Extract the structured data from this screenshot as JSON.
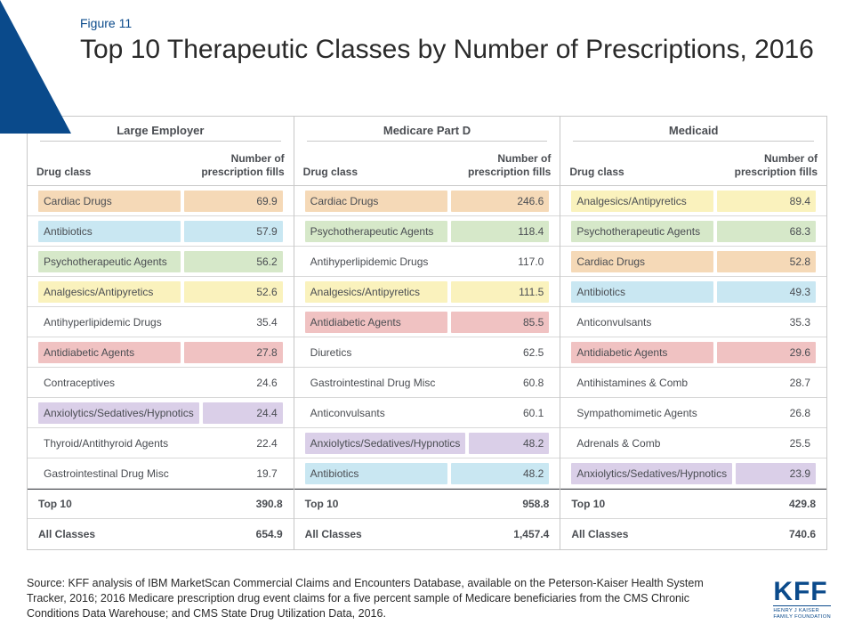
{
  "figure_label": "Figure 11",
  "title": "Top 10 Therapeutic Classes by Number of Prescriptions, 2016",
  "colors": {
    "cardiac": "#f5d9b7",
    "antibiotics": "#c9e7f2",
    "psycho": "#d6e8c9",
    "analgesics": "#faf2bd",
    "antidiabetic": "#f0c2c2",
    "anxiolytics": "#dacfe8",
    "none": "transparent"
  },
  "column_labels": {
    "drug": "Drug class",
    "num": "Number of prescription fills"
  },
  "panels": [
    {
      "name": "Large Employer",
      "rows": [
        {
          "drug": "Cardiac Drugs",
          "val": "69.9",
          "c": "cardiac"
        },
        {
          "drug": "Antibiotics",
          "val": "57.9",
          "c": "antibiotics"
        },
        {
          "drug": "Psychotherapeutic Agents",
          "val": "56.2",
          "c": "psycho"
        },
        {
          "drug": "Analgesics/Antipyretics",
          "val": "52.6",
          "c": "analgesics"
        },
        {
          "drug": "Antihyperlipidemic Drugs",
          "val": "35.4",
          "c": "none"
        },
        {
          "drug": "Antidiabetic Agents",
          "val": "27.8",
          "c": "antidiabetic"
        },
        {
          "drug": "Contraceptives",
          "val": "24.6",
          "c": "none"
        },
        {
          "drug": "Anxiolytics/Sedatives/Hypnotics",
          "val": "24.4",
          "c": "anxiolytics"
        },
        {
          "drug": "Thyroid/Antithyroid Agents",
          "val": "22.4",
          "c": "none"
        },
        {
          "drug": "Gastrointestinal Drug Misc",
          "val": "19.7",
          "c": "none"
        }
      ],
      "totals": [
        {
          "drug": "Top 10",
          "val": "390.8"
        },
        {
          "drug": "All Classes",
          "val": "654.9"
        }
      ]
    },
    {
      "name": "Medicare Part D",
      "rows": [
        {
          "drug": "Cardiac Drugs",
          "val": "246.6",
          "c": "cardiac"
        },
        {
          "drug": "Psychotherapeutic Agents",
          "val": "118.4",
          "c": "psycho"
        },
        {
          "drug": "Antihyperlipidemic Drugs",
          "val": "117.0",
          "c": "none"
        },
        {
          "drug": "Analgesics/Antipyretics",
          "val": "111.5",
          "c": "analgesics"
        },
        {
          "drug": "Antidiabetic Agents",
          "val": "85.5",
          "c": "antidiabetic"
        },
        {
          "drug": "Diuretics",
          "val": "62.5",
          "c": "none"
        },
        {
          "drug": "Gastrointestinal Drug Misc",
          "val": "60.8",
          "c": "none"
        },
        {
          "drug": "Anticonvulsants",
          "val": "60.1",
          "c": "none"
        },
        {
          "drug": "Anxiolytics/Sedatives/Hypnotics",
          "val": "48.2",
          "c": "anxiolytics"
        },
        {
          "drug": "Antibiotics",
          "val": "48.2",
          "c": "antibiotics"
        }
      ],
      "totals": [
        {
          "drug": "Top 10",
          "val": "958.8"
        },
        {
          "drug": "All Classes",
          "val": "1,457.4"
        }
      ]
    },
    {
      "name": "Medicaid",
      "rows": [
        {
          "drug": "Analgesics/Antipyretics",
          "val": "89.4",
          "c": "analgesics"
        },
        {
          "drug": "Psychotherapeutic Agents",
          "val": "68.3",
          "c": "psycho"
        },
        {
          "drug": "Cardiac Drugs",
          "val": "52.8",
          "c": "cardiac"
        },
        {
          "drug": "Antibiotics",
          "val": "49.3",
          "c": "antibiotics"
        },
        {
          "drug": "Anticonvulsants",
          "val": "35.3",
          "c": "none"
        },
        {
          "drug": "Antidiabetic Agents",
          "val": "29.6",
          "c": "antidiabetic"
        },
        {
          "drug": "Antihistamines & Comb",
          "val": "28.7",
          "c": "none"
        },
        {
          "drug": "Sympathomimetic Agents",
          "val": "26.8",
          "c": "none"
        },
        {
          "drug": "Adrenals & Comb",
          "val": "25.5",
          "c": "none"
        },
        {
          "drug": "Anxiolytics/Sedatives/Hypnotics",
          "val": "23.9",
          "c": "anxiolytics"
        }
      ],
      "totals": [
        {
          "drug": "Top 10",
          "val": "429.8"
        },
        {
          "drug": "All Classes",
          "val": "740.6"
        }
      ]
    }
  ],
  "source": "Source: KFF analysis of IBM MarketScan Commercial Claims and Encounters Database, available on the Peterson-Kaiser Health System Tracker, 2016; 2016 Medicare prescription drug event claims for a five percent sample of Medicare beneficiaries from the CMS Chronic Conditions Data Warehouse; and CMS State Drug Utilization Data, 2016.",
  "logo": {
    "big": "KFF",
    "line1": "HENRY J KAISER",
    "line2": "FAMILY FOUNDATION"
  }
}
